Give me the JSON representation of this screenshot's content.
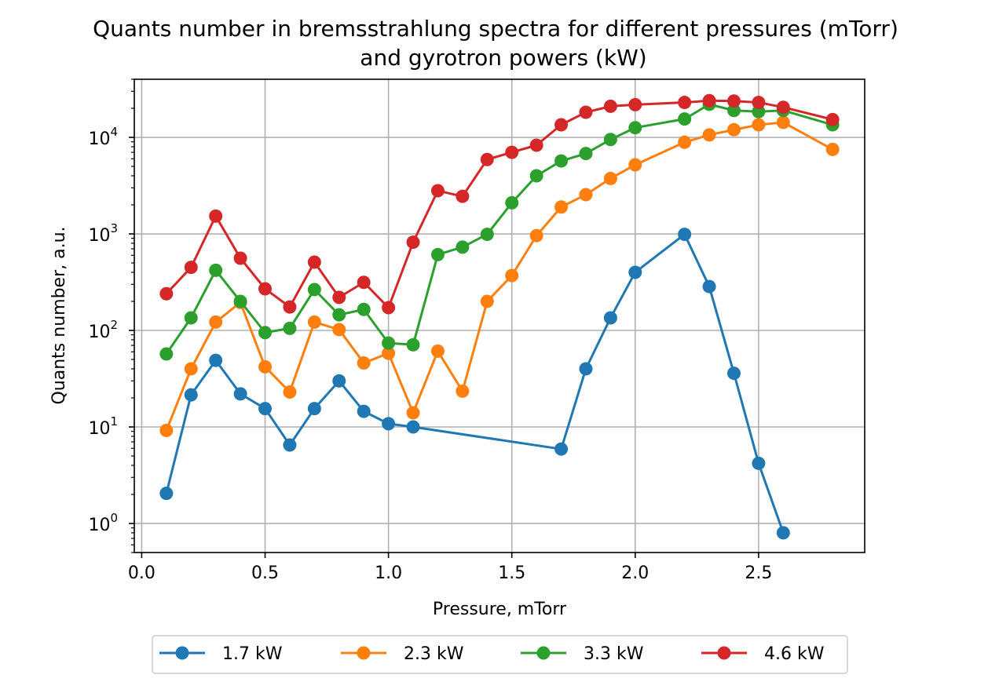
{
  "chart_data": {
    "type": "line",
    "title_line1": "Quants number in bremsstrahlung spectra for different pressures (mTorr)",
    "title_line2": "and gyrotron powers (kW)",
    "xlabel": "Pressure, mTorr",
    "ylabel": "Quants number, a.u.",
    "xlim": [
      -0.03,
      2.93
    ],
    "ylim": [
      0.5,
      40000
    ],
    "y_scale": "log",
    "grid": true,
    "legend_placement": "below",
    "x_ticks": [
      {
        "value": 0.0,
        "label": "0.0"
      },
      {
        "value": 0.5,
        "label": "0.5"
      },
      {
        "value": 1.0,
        "label": "1.0"
      },
      {
        "value": 1.5,
        "label": "1.5"
      },
      {
        "value": 2.0,
        "label": "2.0"
      },
      {
        "value": 2.5,
        "label": "2.5"
      }
    ],
    "y_ticks": [
      {
        "value": 1,
        "base": "10",
        "exp": "0"
      },
      {
        "value": 10,
        "base": "10",
        "exp": "1"
      },
      {
        "value": 100,
        "base": "10",
        "exp": "2"
      },
      {
        "value": 1000,
        "base": "10",
        "exp": "3"
      },
      {
        "value": 10000,
        "base": "10",
        "exp": "4"
      }
    ],
    "series": [
      {
        "name": "1.7 kW",
        "color": "#1f77b4",
        "points": [
          [
            0.1,
            2.05
          ],
          [
            0.2,
            21.5
          ],
          [
            0.3,
            49
          ],
          [
            0.4,
            22
          ],
          [
            0.5,
            15.5
          ],
          [
            0.6,
            6.5
          ],
          [
            0.7,
            15.5
          ],
          [
            0.8,
            30
          ],
          [
            0.9,
            14.5
          ],
          [
            1.0,
            10.8
          ],
          [
            1.1,
            10
          ],
          [
            1.7,
            5.9
          ],
          [
            1.8,
            40
          ],
          [
            1.9,
            135
          ],
          [
            2.0,
            400
          ],
          [
            2.2,
            990
          ],
          [
            2.3,
            285
          ],
          [
            2.4,
            36
          ],
          [
            2.5,
            4.2
          ],
          [
            2.6,
            0.8
          ]
        ]
      },
      {
        "name": "2.3 kW",
        "color": "#ff7f0e",
        "points": [
          [
            0.1,
            9.2
          ],
          [
            0.2,
            40
          ],
          [
            0.3,
            122
          ],
          [
            0.4,
            195
          ],
          [
            0.5,
            42
          ],
          [
            0.6,
            23
          ],
          [
            0.7,
            122
          ],
          [
            0.8,
            102
          ],
          [
            0.9,
            46
          ],
          [
            1.0,
            58
          ],
          [
            1.1,
            14
          ],
          [
            1.2,
            61
          ],
          [
            1.3,
            23.5
          ],
          [
            1.4,
            200
          ],
          [
            1.5,
            370
          ],
          [
            1.6,
            960
          ],
          [
            1.7,
            1900
          ],
          [
            1.8,
            2550
          ],
          [
            1.9,
            3750
          ],
          [
            2.0,
            5200
          ],
          [
            2.2,
            8900
          ],
          [
            2.3,
            10600
          ],
          [
            2.4,
            12000
          ],
          [
            2.5,
            13500
          ],
          [
            2.6,
            14300
          ],
          [
            2.8,
            7500
          ]
        ]
      },
      {
        "name": "3.3 kW",
        "color": "#2ca02c",
        "points": [
          [
            0.1,
            57
          ],
          [
            0.2,
            135
          ],
          [
            0.3,
            420
          ],
          [
            0.4,
            200
          ],
          [
            0.5,
            95
          ],
          [
            0.6,
            105
          ],
          [
            0.7,
            265
          ],
          [
            0.8,
            145
          ],
          [
            0.9,
            165
          ],
          [
            1.0,
            74
          ],
          [
            1.1,
            71
          ],
          [
            1.2,
            610
          ],
          [
            1.3,
            730
          ],
          [
            1.4,
            990
          ],
          [
            1.5,
            2100
          ],
          [
            1.6,
            4000
          ],
          [
            1.7,
            5700
          ],
          [
            1.8,
            6800
          ],
          [
            1.9,
            9500
          ],
          [
            2.0,
            12600
          ],
          [
            2.2,
            15500
          ],
          [
            2.3,
            22000
          ],
          [
            2.4,
            19000
          ],
          [
            2.5,
            18500
          ],
          [
            2.6,
            19000
          ],
          [
            2.8,
            13500
          ]
        ]
      },
      {
        "name": "4.6 kW",
        "color": "#d62728",
        "points": [
          [
            0.1,
            240
          ],
          [
            0.2,
            450
          ],
          [
            0.3,
            1530
          ],
          [
            0.4,
            560
          ],
          [
            0.5,
            270
          ],
          [
            0.6,
            175
          ],
          [
            0.7,
            510
          ],
          [
            0.8,
            220
          ],
          [
            0.9,
            315
          ],
          [
            1.0,
            172
          ],
          [
            1.1,
            820
          ],
          [
            1.2,
            2800
          ],
          [
            1.3,
            2450
          ],
          [
            1.4,
            5900
          ],
          [
            1.5,
            7000
          ],
          [
            1.6,
            8300
          ],
          [
            1.7,
            13500
          ],
          [
            1.8,
            18200
          ],
          [
            1.9,
            21000
          ],
          [
            2.0,
            21800
          ],
          [
            2.2,
            23000
          ],
          [
            2.3,
            24000
          ],
          [
            2.4,
            23800
          ],
          [
            2.5,
            23000
          ],
          [
            2.6,
            20500
          ],
          [
            2.8,
            15300
          ]
        ]
      }
    ]
  }
}
